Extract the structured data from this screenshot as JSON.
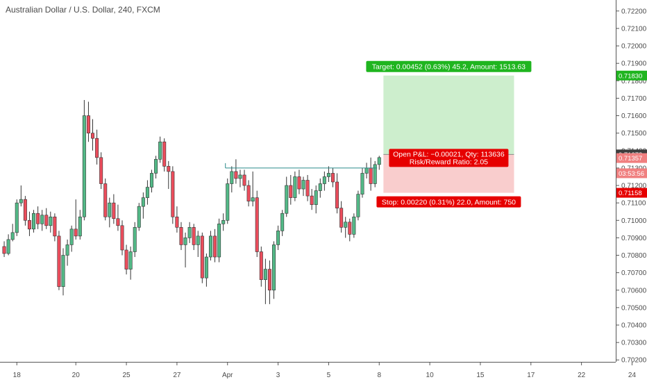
{
  "chart_data": {
    "type": "candlestick",
    "title": "Australian Dollar / U.S. Dollar, 240, FXCM",
    "ylim": [
      0.70189,
      0.72263
    ],
    "y_ticks": [
      "0.70200",
      "0.70300",
      "0.70400",
      "0.70500",
      "0.70600",
      "0.70700",
      "0.70800",
      "0.70900",
      "0.71000",
      "0.71100",
      "0.71200",
      "0.71300",
      "0.71400",
      "0.71500",
      "0.71600",
      "0.71700",
      "0.71800",
      "0.71900",
      "0.72000",
      "0.72100",
      "0.72200"
    ],
    "x_ticks": [
      {
        "label": "18",
        "bar": 3.5
      },
      {
        "label": "20",
        "bar": 17.5
      },
      {
        "label": "25",
        "bar": 29.5
      },
      {
        "label": "27",
        "bar": 41.5
      },
      {
        "label": "Apr",
        "bar": 53.5
      },
      {
        "label": "3",
        "bar": 65.5
      },
      {
        "label": "5",
        "bar": 77.5
      },
      {
        "label": "8",
        "bar": 89.5
      },
      {
        "label": "10",
        "bar": 101.5
      },
      {
        "label": "15",
        "bar": 113.5
      },
      {
        "label": "17",
        "bar": 125.5
      },
      {
        "label": "22",
        "bar": 137.5
      },
      {
        "label": "24",
        "bar": 149.5
      }
    ],
    "bars": [
      [
        0.7085,
        0.7088,
        0.7079,
        0.7081
      ],
      [
        0.7081,
        0.7092,
        0.708,
        0.7089
      ],
      [
        0.7089,
        0.7098,
        0.7088,
        0.7093
      ],
      [
        0.7093,
        0.7112,
        0.7091,
        0.711
      ],
      [
        0.711,
        0.712,
        0.7108,
        0.7112
      ],
      [
        0.7112,
        0.7114,
        0.7097,
        0.71
      ],
      [
        0.71,
        0.7105,
        0.7091,
        0.7095
      ],
      [
        0.7095,
        0.7106,
        0.7093,
        0.7104
      ],
      [
        0.7104,
        0.7108,
        0.7095,
        0.7098
      ],
      [
        0.7098,
        0.7106,
        0.7094,
        0.7103
      ],
      [
        0.7103,
        0.7107,
        0.7095,
        0.7097
      ],
      [
        0.7097,
        0.7105,
        0.7093,
        0.7102
      ],
      [
        0.7102,
        0.7104,
        0.7088,
        0.7091
      ],
      [
        0.7091,
        0.7094,
        0.706,
        0.7062
      ],
      [
        0.7062,
        0.7084,
        0.7057,
        0.708
      ],
      [
        0.708,
        0.7089,
        0.7074,
        0.7086
      ],
      [
        0.7086,
        0.7097,
        0.7082,
        0.7095
      ],
      [
        0.7095,
        0.7112,
        0.7089,
        0.7091
      ],
      [
        0.7091,
        0.7106,
        0.7089,
        0.7102
      ],
      [
        0.7102,
        0.7169,
        0.71,
        0.716
      ],
      [
        0.716,
        0.7168,
        0.7145,
        0.715
      ],
      [
        0.715,
        0.7158,
        0.714,
        0.7147
      ],
      [
        0.7147,
        0.7152,
        0.7132,
        0.7136
      ],
      [
        0.7136,
        0.7139,
        0.7118,
        0.7121
      ],
      [
        0.7121,
        0.7124,
        0.71,
        0.7102
      ],
      [
        0.7102,
        0.7113,
        0.7096,
        0.711
      ],
      [
        0.711,
        0.7115,
        0.7098,
        0.7101
      ],
      [
        0.7101,
        0.7109,
        0.7094,
        0.7097
      ],
      [
        0.7097,
        0.71,
        0.708,
        0.7083
      ],
      [
        0.7083,
        0.7086,
        0.7069,
        0.7072
      ],
      [
        0.7072,
        0.7085,
        0.7066,
        0.7082
      ],
      [
        0.7082,
        0.7099,
        0.7079,
        0.7096
      ],
      [
        0.7096,
        0.711,
        0.7094,
        0.7108
      ],
      [
        0.7108,
        0.7116,
        0.7101,
        0.7113
      ],
      [
        0.7113,
        0.7123,
        0.7109,
        0.7119
      ],
      [
        0.7119,
        0.7129,
        0.7116,
        0.7127
      ],
      [
        0.7127,
        0.7137,
        0.7124,
        0.7135
      ],
      [
        0.7135,
        0.7148,
        0.7133,
        0.7145
      ],
      [
        0.7145,
        0.7147,
        0.7128,
        0.7131
      ],
      [
        0.7131,
        0.7134,
        0.7118,
        0.7128
      ],
      [
        0.7128,
        0.7131,
        0.7098,
        0.7102
      ],
      [
        0.7102,
        0.7108,
        0.7093,
        0.7096
      ],
      [
        0.7096,
        0.7099,
        0.7083,
        0.7086
      ],
      [
        0.7086,
        0.7093,
        0.7073,
        0.709
      ],
      [
        0.709,
        0.7099,
        0.7087,
        0.7096
      ],
      [
        0.7096,
        0.7098,
        0.7083,
        0.7086
      ],
      [
        0.7086,
        0.7094,
        0.7079,
        0.7091
      ],
      [
        0.7091,
        0.7093,
        0.7064,
        0.7067
      ],
      [
        0.7067,
        0.7081,
        0.7062,
        0.7079
      ],
      [
        0.7079,
        0.7094,
        0.7077,
        0.7091
      ],
      [
        0.7091,
        0.7095,
        0.7076,
        0.7079
      ],
      [
        0.7079,
        0.7101,
        0.7076,
        0.7098
      ],
      [
        0.7098,
        0.7104,
        0.7094,
        0.71
      ],
      [
        0.71,
        0.7124,
        0.7098,
        0.7121
      ],
      [
        0.7121,
        0.7131,
        0.7116,
        0.7128
      ],
      [
        0.7128,
        0.7135,
        0.7121,
        0.7124
      ],
      [
        0.7124,
        0.7129,
        0.7119,
        0.7126
      ],
      [
        0.7126,
        0.7129,
        0.7117,
        0.712
      ],
      [
        0.712,
        0.7123,
        0.7108,
        0.7111
      ],
      [
        0.7111,
        0.7128,
        0.7108,
        0.7113
      ],
      [
        0.7113,
        0.7117,
        0.7079,
        0.7082
      ],
      [
        0.7082,
        0.7085,
        0.7062,
        0.7066
      ],
      [
        0.7066,
        0.7078,
        0.7052,
        0.7072
      ],
      [
        0.7072,
        0.7077,
        0.7052,
        0.706
      ],
      [
        0.706,
        0.7088,
        0.7055,
        0.7086
      ],
      [
        0.7086,
        0.7097,
        0.7083,
        0.7094
      ],
      [
        0.7094,
        0.7106,
        0.7091,
        0.7104
      ],
      [
        0.7104,
        0.7125,
        0.7102,
        0.712
      ],
      [
        0.712,
        0.7126,
        0.7109,
        0.7113
      ],
      [
        0.7113,
        0.7128,
        0.7111,
        0.7125
      ],
      [
        0.7125,
        0.7129,
        0.7115,
        0.7118
      ],
      [
        0.7118,
        0.7125,
        0.7114,
        0.7123
      ],
      [
        0.7123,
        0.7126,
        0.7111,
        0.7114
      ],
      [
        0.7114,
        0.7118,
        0.7106,
        0.7109
      ],
      [
        0.7109,
        0.712,
        0.7104,
        0.7117
      ],
      [
        0.7117,
        0.7124,
        0.7113,
        0.7121
      ],
      [
        0.7121,
        0.7128,
        0.7117,
        0.7125
      ],
      [
        0.7125,
        0.7131,
        0.7122,
        0.7127
      ],
      [
        0.7127,
        0.713,
        0.7119,
        0.7122
      ],
      [
        0.7122,
        0.7127,
        0.7104,
        0.7107
      ],
      [
        0.7107,
        0.7111,
        0.7093,
        0.7096
      ],
      [
        0.7096,
        0.7102,
        0.709,
        0.7099
      ],
      [
        0.7099,
        0.7101,
        0.7088,
        0.7092
      ],
      [
        0.7092,
        0.7104,
        0.709,
        0.7102
      ],
      [
        0.7102,
        0.7117,
        0.71,
        0.7115
      ],
      [
        0.7115,
        0.713,
        0.7113,
        0.7127
      ],
      [
        0.7127,
        0.7133,
        0.7124,
        0.713
      ],
      [
        0.713,
        0.7136,
        0.7117,
        0.7121
      ],
      [
        0.7121,
        0.7134,
        0.7119,
        0.7132
      ],
      [
        0.7132,
        0.7137,
        0.7129,
        0.7136
      ]
    ],
    "colors": {
      "up": "#53b987",
      "down": "#eb4d5c",
      "target_zone": "#cdeecd",
      "stop_zone": "#f9cdcd",
      "target_label": "#1fb51f",
      "stop_label": "#e60000",
      "price_label": "#3d3d3d"
    },
    "position": {
      "entry": 0.71378,
      "target": 0.7183,
      "stop": 0.71158,
      "start_bar": 90.5,
      "end_bar": 121.5,
      "target_text": "Target: 0.00452 (0.63%) 45.2, Amount: 1513.63",
      "stop_text": "Stop: 0.00220 (0.31%) 22.0, Amount: 750",
      "pnl_text": "Open P&L: −0.00021, Qty: 113636",
      "rr_text": "Risk/Reward Ratio: 2.05"
    },
    "resistance_line": {
      "start_bar": 53,
      "end_bar": 89,
      "value": 0.713
    },
    "axis_labels": [
      {
        "value": 0.7183,
        "text": "0.71830",
        "color": "#1fb51f"
      },
      {
        "value": 0.71378,
        "text": "0.71378",
        "color": "#3d3d3d"
      },
      {
        "value": 0.71357,
        "text": "0.71357",
        "color": "#f08080"
      },
      {
        "value": 0.7127,
        "text": "03:53:56",
        "color": "#f08080"
      },
      {
        "value": 0.71158,
        "text": "0.71158",
        "color": "#e60000"
      }
    ]
  }
}
